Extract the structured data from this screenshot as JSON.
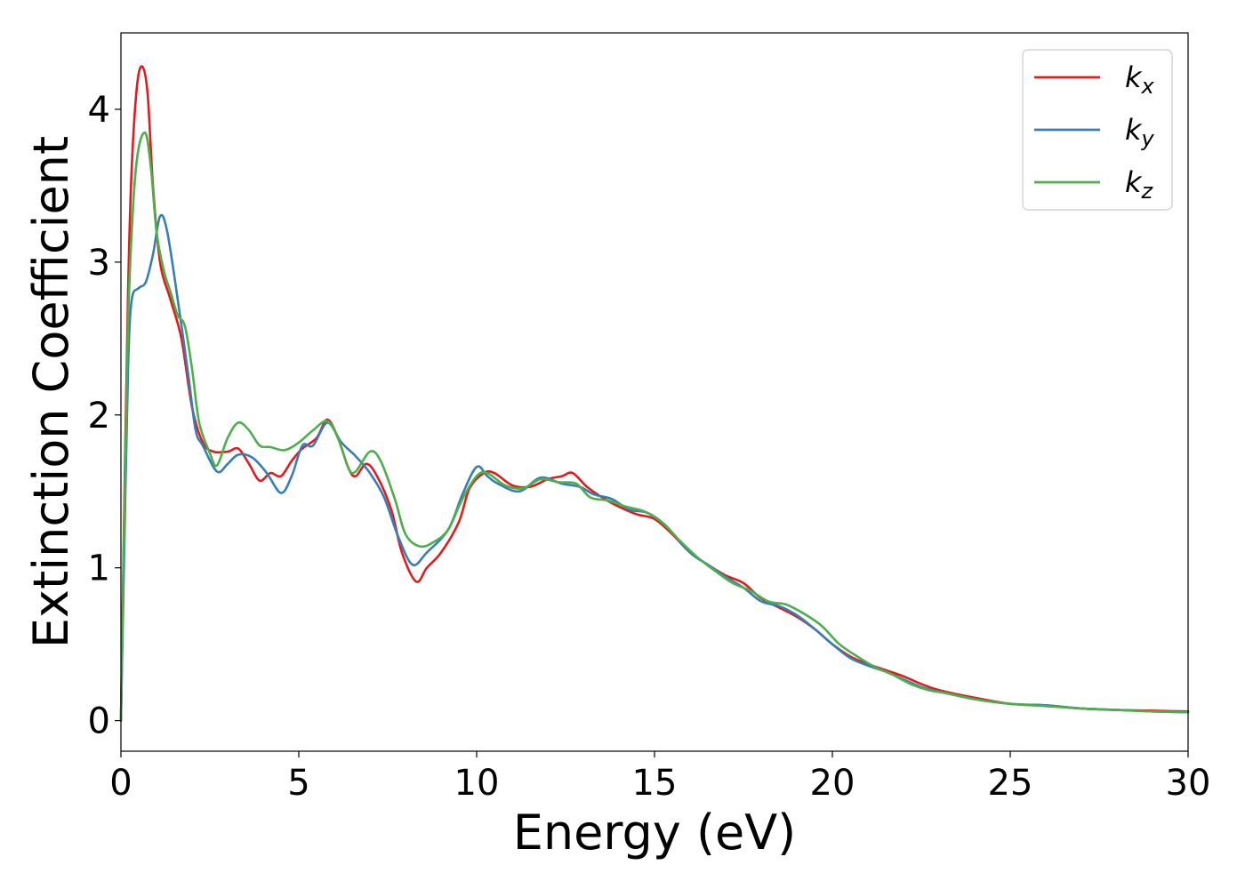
{
  "chart_data": {
    "type": "line",
    "title": "",
    "xlabel": "Energy (eV)",
    "ylabel": "Extinction Coefficient",
    "xlim": [
      0,
      30
    ],
    "ylim": [
      -0.2,
      4.5
    ],
    "xticks": [
      0,
      5,
      10,
      15,
      20,
      25,
      30
    ],
    "yticks": [
      0,
      1,
      2,
      3,
      4
    ],
    "grid": false,
    "legend_position": "top-right",
    "series": [
      {
        "name": "k_x",
        "legend_base": "k",
        "legend_sub": "x",
        "color": "#e41a1c",
        "points": [
          [
            0,
            0
          ],
          [
            0.1,
            1.5
          ],
          [
            0.2,
            2.8
          ],
          [
            0.3,
            3.6
          ],
          [
            0.45,
            4.15
          ],
          [
            0.6,
            4.28
          ],
          [
            0.75,
            4.1
          ],
          [
            0.9,
            3.5
          ],
          [
            1.1,
            3.0
          ],
          [
            1.4,
            2.75
          ],
          [
            1.7,
            2.5
          ],
          [
            2.0,
            2.05
          ],
          [
            2.3,
            1.82
          ],
          [
            2.6,
            1.76
          ],
          [
            3.0,
            1.76
          ],
          [
            3.3,
            1.78
          ],
          [
            3.6,
            1.68
          ],
          [
            3.9,
            1.57
          ],
          [
            4.2,
            1.62
          ],
          [
            4.5,
            1.6
          ],
          [
            4.8,
            1.7
          ],
          [
            5.1,
            1.78
          ],
          [
            5.5,
            1.85
          ],
          [
            5.8,
            1.97
          ],
          [
            6.1,
            1.85
          ],
          [
            6.4,
            1.65
          ],
          [
            6.6,
            1.6
          ],
          [
            6.9,
            1.68
          ],
          [
            7.2,
            1.6
          ],
          [
            7.6,
            1.38
          ],
          [
            7.9,
            1.1
          ],
          [
            8.3,
            0.91
          ],
          [
            8.6,
            1.0
          ],
          [
            9.0,
            1.1
          ],
          [
            9.5,
            1.3
          ],
          [
            9.8,
            1.52
          ],
          [
            10.2,
            1.62
          ],
          [
            10.5,
            1.62
          ],
          [
            11.0,
            1.54
          ],
          [
            11.5,
            1.53
          ],
          [
            12.0,
            1.58
          ],
          [
            12.4,
            1.6
          ],
          [
            12.7,
            1.62
          ],
          [
            13.1,
            1.53
          ],
          [
            13.6,
            1.45
          ],
          [
            14.0,
            1.4
          ],
          [
            14.5,
            1.35
          ],
          [
            15.0,
            1.32
          ],
          [
            15.5,
            1.22
          ],
          [
            16.0,
            1.1
          ],
          [
            16.5,
            1.02
          ],
          [
            17.0,
            0.95
          ],
          [
            17.5,
            0.9
          ],
          [
            18.0,
            0.8
          ],
          [
            18.5,
            0.74
          ],
          [
            19.0,
            0.68
          ],
          [
            19.5,
            0.6
          ],
          [
            20.0,
            0.5
          ],
          [
            20.5,
            0.42
          ],
          [
            21.0,
            0.37
          ],
          [
            21.5,
            0.33
          ],
          [
            22.0,
            0.29
          ],
          [
            22.5,
            0.24
          ],
          [
            23.0,
            0.2
          ],
          [
            24.0,
            0.15
          ],
          [
            25.0,
            0.11
          ],
          [
            26.0,
            0.1
          ],
          [
            27.0,
            0.08
          ],
          [
            28.0,
            0.07
          ],
          [
            29.0,
            0.065
          ],
          [
            30.0,
            0.06
          ]
        ]
      },
      {
        "name": "k_y",
        "legend_base": "k",
        "legend_sub": "y",
        "color": "#377eb8",
        "points": [
          [
            0,
            0
          ],
          [
            0.1,
            1.2
          ],
          [
            0.2,
            2.3
          ],
          [
            0.3,
            2.75
          ],
          [
            0.5,
            2.83
          ],
          [
            0.7,
            2.87
          ],
          [
            0.9,
            3.05
          ],
          [
            1.1,
            3.3
          ],
          [
            1.3,
            3.2
          ],
          [
            1.6,
            2.75
          ],
          [
            1.9,
            2.25
          ],
          [
            2.1,
            1.9
          ],
          [
            2.3,
            1.8
          ],
          [
            2.7,
            1.63
          ],
          [
            3.0,
            1.68
          ],
          [
            3.3,
            1.74
          ],
          [
            3.7,
            1.72
          ],
          [
            4.1,
            1.62
          ],
          [
            4.5,
            1.49
          ],
          [
            4.8,
            1.6
          ],
          [
            5.1,
            1.8
          ],
          [
            5.4,
            1.8
          ],
          [
            5.8,
            1.95
          ],
          [
            6.2,
            1.82
          ],
          [
            6.6,
            1.73
          ],
          [
            7.0,
            1.62
          ],
          [
            7.4,
            1.46
          ],
          [
            7.8,
            1.2
          ],
          [
            8.2,
            1.02
          ],
          [
            8.6,
            1.1
          ],
          [
            9.2,
            1.25
          ],
          [
            9.6,
            1.48
          ],
          [
            10.0,
            1.66
          ],
          [
            10.3,
            1.6
          ],
          [
            10.6,
            1.55
          ],
          [
            11.2,
            1.5
          ],
          [
            11.8,
            1.59
          ],
          [
            12.4,
            1.55
          ],
          [
            12.9,
            1.53
          ],
          [
            13.3,
            1.48
          ],
          [
            13.8,
            1.45
          ],
          [
            14.3,
            1.38
          ],
          [
            14.8,
            1.36
          ],
          [
            15.3,
            1.28
          ],
          [
            16.0,
            1.1
          ],
          [
            16.5,
            1.02
          ],
          [
            17.0,
            0.94
          ],
          [
            17.5,
            0.87
          ],
          [
            18.0,
            0.78
          ],
          [
            18.5,
            0.75
          ],
          [
            19.0,
            0.69
          ],
          [
            19.5,
            0.6
          ],
          [
            20.0,
            0.5
          ],
          [
            20.5,
            0.41
          ],
          [
            21.0,
            0.36
          ],
          [
            21.5,
            0.32
          ],
          [
            22.0,
            0.27
          ],
          [
            22.5,
            0.22
          ],
          [
            23.0,
            0.19
          ],
          [
            24.0,
            0.14
          ],
          [
            25.0,
            0.11
          ],
          [
            26.0,
            0.1
          ],
          [
            27.0,
            0.08
          ],
          [
            28.0,
            0.07
          ],
          [
            29.0,
            0.06
          ],
          [
            30.0,
            0.055
          ]
        ]
      },
      {
        "name": "k_z",
        "legend_base": "k",
        "legend_sub": "z",
        "color": "#4daf4a",
        "points": [
          [
            0,
            0
          ],
          [
            0.1,
            1.4
          ],
          [
            0.2,
            2.6
          ],
          [
            0.35,
            3.4
          ],
          [
            0.5,
            3.75
          ],
          [
            0.7,
            3.84
          ],
          [
            0.85,
            3.6
          ],
          [
            1.0,
            3.2
          ],
          [
            1.2,
            2.95
          ],
          [
            1.4,
            2.8
          ],
          [
            1.6,
            2.65
          ],
          [
            1.8,
            2.58
          ],
          [
            2.0,
            2.3
          ],
          [
            2.2,
            1.95
          ],
          [
            2.5,
            1.75
          ],
          [
            2.7,
            1.67
          ],
          [
            3.0,
            1.85
          ],
          [
            3.3,
            1.95
          ],
          [
            3.6,
            1.9
          ],
          [
            3.9,
            1.8
          ],
          [
            4.2,
            1.79
          ],
          [
            4.6,
            1.77
          ],
          [
            5.0,
            1.82
          ],
          [
            5.4,
            1.9
          ],
          [
            5.8,
            1.96
          ],
          [
            6.1,
            1.85
          ],
          [
            6.4,
            1.65
          ],
          [
            6.6,
            1.63
          ],
          [
            7.0,
            1.76
          ],
          [
            7.3,
            1.7
          ],
          [
            7.7,
            1.45
          ],
          [
            8.0,
            1.22
          ],
          [
            8.4,
            1.14
          ],
          [
            8.8,
            1.17
          ],
          [
            9.2,
            1.25
          ],
          [
            9.6,
            1.45
          ],
          [
            10.0,
            1.6
          ],
          [
            10.3,
            1.62
          ],
          [
            10.8,
            1.54
          ],
          [
            11.3,
            1.52
          ],
          [
            11.8,
            1.58
          ],
          [
            12.3,
            1.56
          ],
          [
            12.8,
            1.55
          ],
          [
            13.2,
            1.46
          ],
          [
            13.7,
            1.44
          ],
          [
            14.2,
            1.4
          ],
          [
            14.7,
            1.37
          ],
          [
            15.2,
            1.3
          ],
          [
            15.7,
            1.18
          ],
          [
            16.2,
            1.07
          ],
          [
            16.7,
            0.98
          ],
          [
            17.2,
            0.9
          ],
          [
            17.7,
            0.85
          ],
          [
            18.2,
            0.78
          ],
          [
            18.7,
            0.76
          ],
          [
            19.2,
            0.7
          ],
          [
            19.7,
            0.62
          ],
          [
            20.2,
            0.5
          ],
          [
            20.7,
            0.42
          ],
          [
            21.2,
            0.35
          ],
          [
            21.7,
            0.3
          ],
          [
            22.2,
            0.24
          ],
          [
            22.7,
            0.2
          ],
          [
            23.2,
            0.18
          ],
          [
            24.0,
            0.14
          ],
          [
            25.0,
            0.11
          ],
          [
            26.0,
            0.095
          ],
          [
            27.0,
            0.08
          ],
          [
            28.0,
            0.07
          ],
          [
            29.0,
            0.06
          ],
          [
            30.0,
            0.055
          ]
        ]
      }
    ]
  }
}
